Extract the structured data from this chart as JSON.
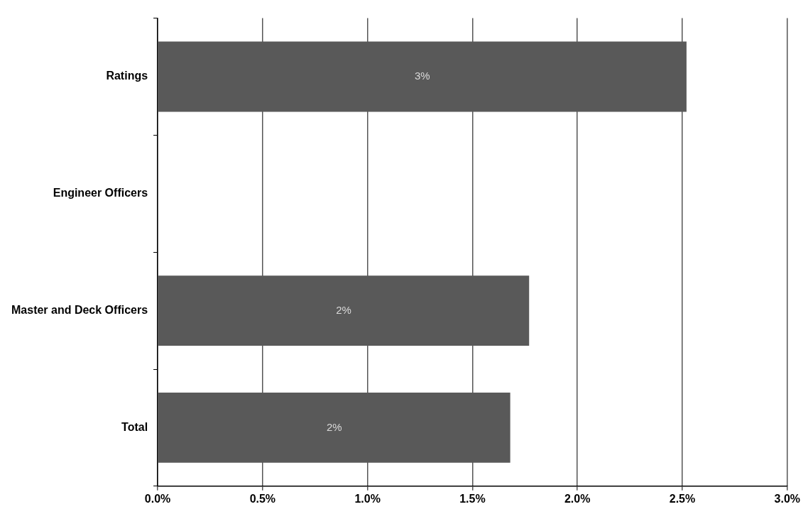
{
  "chart_data": {
    "type": "bar",
    "orientation": "horizontal",
    "categories": [
      "Ratings",
      "Engineer Officers",
      "Master and Deck Officers",
      "Total"
    ],
    "values": [
      2.52,
      null,
      1.77,
      1.68
    ],
    "color": "#595959",
    "value_labels": [
      "3%",
      null,
      "2%",
      "2%"
    ],
    "xlim": [
      0,
      3
    ],
    "xticks": [
      {
        "value": 0,
        "label": "0.0%"
      },
      {
        "value": 0.5,
        "label": "0.5%"
      },
      {
        "value": 1,
        "label": "1.0%"
      },
      {
        "value": 1.5,
        "label": "1.5%"
      },
      {
        "value": 2,
        "label": "2.0%"
      },
      {
        "value": 2.5,
        "label": "2.5%"
      },
      {
        "value": 3,
        "label": "3.0%"
      }
    ],
    "grid": "x",
    "legend": false
  }
}
